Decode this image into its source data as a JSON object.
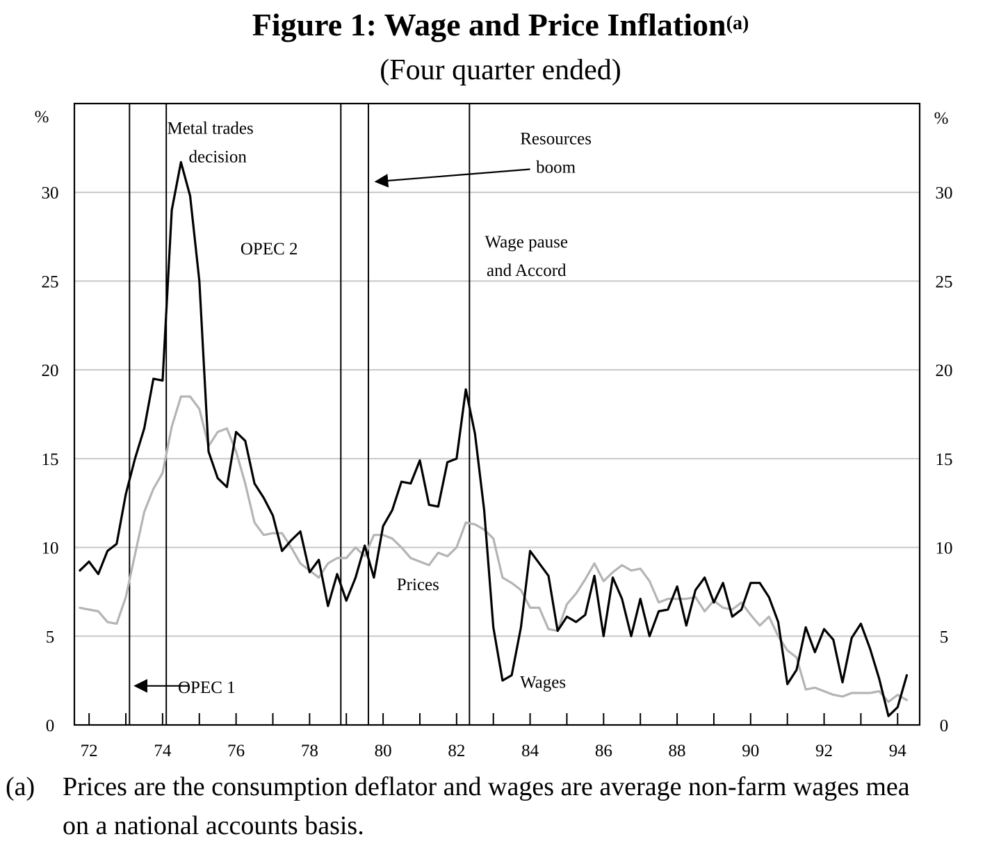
{
  "title": "Figure 1: Wage and Price Inflation",
  "title_superscript": "(a)",
  "subtitle": "(Four quarter ended)",
  "footnote": {
    "mark": "(a)",
    "line1": "Prices are the consumption deflator and wages are average non-farm wages mea",
    "line2": "on a national accounts basis."
  },
  "chart_data": {
    "type": "line",
    "ylabel_left": "%",
    "ylabel_right": "%",
    "ylim": [
      0,
      35
    ],
    "yticks": [
      0,
      5,
      10,
      15,
      20,
      25,
      30
    ],
    "xlim": [
      1971.6,
      1994.6
    ],
    "xtick_labels": [
      "72",
      "74",
      "76",
      "78",
      "80",
      "82",
      "84",
      "86",
      "88",
      "90",
      "92",
      "94"
    ],
    "xtick_values": [
      1972,
      1974,
      1976,
      1978,
      1980,
      1982,
      1984,
      1986,
      1988,
      1990,
      1992,
      1994
    ],
    "grid": "horizontal",
    "series": [
      {
        "name": "Wages",
        "color": "#000000",
        "x": [
          1971.75,
          1972.0,
          1972.25,
          1972.5,
          1972.75,
          1973.0,
          1973.25,
          1973.5,
          1973.75,
          1974.0,
          1974.25,
          1974.5,
          1974.75,
          1975.0,
          1975.25,
          1975.5,
          1975.75,
          1976.0,
          1976.25,
          1976.5,
          1976.75,
          1977.0,
          1977.25,
          1977.5,
          1977.75,
          1978.0,
          1978.25,
          1978.5,
          1978.75,
          1979.0,
          1979.25,
          1979.5,
          1979.75,
          1980.0,
          1980.25,
          1980.5,
          1980.75,
          1981.0,
          1981.25,
          1981.5,
          1981.75,
          1982.0,
          1982.25,
          1982.5,
          1982.75,
          1983.0,
          1983.25,
          1983.5,
          1983.75,
          1984.0,
          1984.25,
          1984.5,
          1984.75,
          1985.0,
          1985.25,
          1985.5,
          1985.75,
          1986.0,
          1986.25,
          1986.5,
          1986.75,
          1987.0,
          1987.25,
          1987.5,
          1987.75,
          1988.0,
          1988.25,
          1988.5,
          1988.75,
          1989.0,
          1989.25,
          1989.5,
          1989.75,
          1990.0,
          1990.25,
          1990.5,
          1990.75,
          1991.0,
          1991.25,
          1991.5,
          1991.75,
          1992.0,
          1992.25,
          1992.5,
          1992.75,
          1993.0,
          1993.25,
          1993.5,
          1993.75,
          1994.0,
          1994.25
        ],
        "values": [
          8.7,
          9.2,
          8.5,
          9.8,
          10.2,
          13.0,
          15.0,
          16.7,
          19.5,
          19.4,
          29.0,
          31.7,
          29.8,
          25.0,
          15.4,
          13.9,
          13.4,
          16.5,
          16.0,
          13.6,
          12.8,
          11.8,
          9.8,
          10.4,
          10.9,
          8.6,
          9.3,
          6.7,
          8.5,
          7.0,
          8.3,
          10.1,
          8.3,
          11.2,
          12.1,
          13.7,
          13.6,
          14.9,
          12.4,
          12.3,
          14.8,
          15.0,
          18.9,
          16.4,
          12.1,
          5.5,
          2.5,
          2.8,
          5.5,
          9.8,
          9.1,
          8.4,
          5.3,
          6.1,
          5.8,
          6.2,
          8.4,
          5.0,
          8.3,
          7.1,
          5.0,
          7.1,
          5.0,
          6.4,
          6.5,
          7.8,
          5.6,
          7.6,
          8.3,
          6.9,
          8.0,
          6.1,
          6.5,
          8.0,
          8.0,
          7.2,
          5.8,
          2.3,
          3.1,
          5.5,
          4.1,
          5.4,
          4.8,
          2.4,
          4.9,
          5.7,
          4.3,
          2.6,
          0.5,
          1.0,
          2.8
        ]
      },
      {
        "name": "Prices",
        "color": "#b4b4b4",
        "x": [
          1971.75,
          1972.0,
          1972.25,
          1972.5,
          1972.75,
          1973.0,
          1973.25,
          1973.5,
          1973.75,
          1974.0,
          1974.25,
          1974.5,
          1974.75,
          1975.0,
          1975.25,
          1975.5,
          1975.75,
          1976.0,
          1976.25,
          1976.5,
          1976.75,
          1977.0,
          1977.25,
          1977.5,
          1977.75,
          1978.0,
          1978.25,
          1978.5,
          1978.75,
          1979.0,
          1979.25,
          1979.5,
          1979.75,
          1980.0,
          1980.25,
          1980.5,
          1980.75,
          1981.0,
          1981.25,
          1981.5,
          1981.75,
          1982.0,
          1982.25,
          1982.5,
          1982.75,
          1983.0,
          1983.25,
          1983.5,
          1983.75,
          1984.0,
          1984.25,
          1984.5,
          1984.75,
          1985.0,
          1985.25,
          1985.5,
          1985.75,
          1986.0,
          1986.25,
          1986.5,
          1986.75,
          1987.0,
          1987.25,
          1987.5,
          1987.75,
          1988.0,
          1988.25,
          1988.5,
          1988.75,
          1989.0,
          1989.25,
          1989.5,
          1989.75,
          1990.0,
          1990.25,
          1990.5,
          1990.75,
          1991.0,
          1991.25,
          1991.5,
          1991.75,
          1992.0,
          1992.25,
          1992.5,
          1992.75,
          1993.0,
          1993.25,
          1993.5,
          1993.75,
          1994.0,
          1994.25
        ],
        "values": [
          6.6,
          6.5,
          6.4,
          5.8,
          5.7,
          7.2,
          9.6,
          12.0,
          13.3,
          14.2,
          16.8,
          18.5,
          18.5,
          17.8,
          15.7,
          16.5,
          16.7,
          15.4,
          13.6,
          11.4,
          10.7,
          10.8,
          10.8,
          10.0,
          9.1,
          8.7,
          8.3,
          9.1,
          9.4,
          9.4,
          10.0,
          9.5,
          10.7,
          10.7,
          10.5,
          10.0,
          9.4,
          9.2,
          9.0,
          9.7,
          9.5,
          10.0,
          11.4,
          11.3,
          11.0,
          10.5,
          8.3,
          8.0,
          7.6,
          6.6,
          6.6,
          5.4,
          5.3,
          6.8,
          7.4,
          8.2,
          9.1,
          8.1,
          8.6,
          9.0,
          8.7,
          8.8,
          8.1,
          6.9,
          7.1,
          7.1,
          7.1,
          7.2,
          6.4,
          7.0,
          6.6,
          6.5,
          6.9,
          6.2,
          5.6,
          6.1,
          5.0,
          4.2,
          3.8,
          2.0,
          2.1,
          1.9,
          1.7,
          1.6,
          1.8,
          1.8,
          1.8,
          1.9,
          1.3,
          1.7,
          1.4
        ]
      }
    ],
    "event_lines": [
      1973.1,
      1974.1,
      1978.85,
      1979.6,
      1982.35
    ],
    "annotations": [
      {
        "text": "Metal trades",
        "x": 1975.3,
        "y": 33.3
      },
      {
        "text": "decision",
        "x": 1975.5,
        "y": 31.7
      },
      {
        "text": "Resources",
        "x": 1984.7,
        "y": 32.7
      },
      {
        "text": "boom",
        "x": 1984.7,
        "y": 31.1
      },
      {
        "text": "OPEC 2",
        "x": 1976.9,
        "y": 26.5
      },
      {
        "text": "Wage pause",
        "x": 1983.9,
        "y": 26.9
      },
      {
        "text": "and Accord",
        "x": 1983.9,
        "y": 25.3
      },
      {
        "text": "Prices",
        "x": 1980.95,
        "y": 7.6
      },
      {
        "text": "Wages",
        "x": 1984.35,
        "y": 2.1
      },
      {
        "text": "OPEC 1",
        "x": 1975.2,
        "y": 1.8
      }
    ],
    "arrows": [
      {
        "from": [
          1984.0,
          31.3
        ],
        "to": [
          1979.8,
          30.6
        ]
      },
      {
        "from": [
          1974.7,
          2.2
        ],
        "to": [
          1973.25,
          2.2
        ]
      }
    ]
  }
}
